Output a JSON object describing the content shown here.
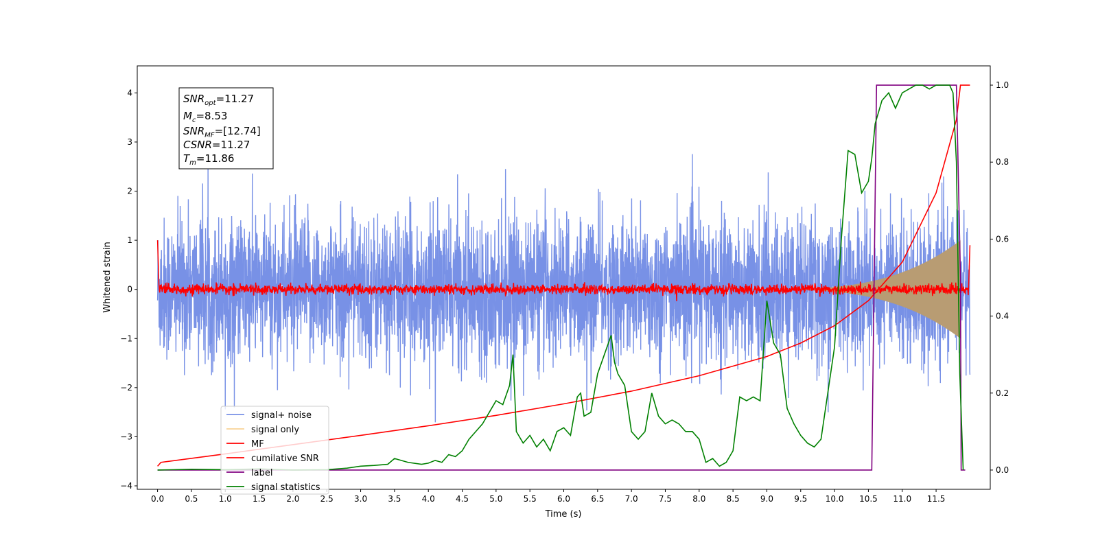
{
  "chart_data": {
    "type": "line",
    "xlabel": "Time (s)",
    "ylabel": "Whitened strain",
    "x_ticks": [
      "0.0",
      "0.5",
      "1.0",
      "1.5",
      "2.0",
      "2.5",
      "3.0",
      "3.5",
      "4.0",
      "4.5",
      "5.0",
      "5.5",
      "6.0",
      "6.5",
      "7.0",
      "7.5",
      "8.0",
      "8.5",
      "9.0",
      "9.5",
      "10.0",
      "10.5",
      "11.0",
      "11.5"
    ],
    "y_left_ticks": [
      "4",
      "3",
      "2",
      "1",
      "0",
      "−1",
      "−2",
      "−3",
      "−4"
    ],
    "y_right_ticks": [
      "1.0",
      "0.8",
      "0.6",
      "0.4",
      "0.2",
      "0.0"
    ],
    "xlim": [
      -0.3,
      12.3
    ],
    "ylim_left": [
      -4.07,
      4.55
    ],
    "ylim_right": [
      -0.05,
      1.05
    ],
    "legend_position": "lower-left",
    "grid": false,
    "annotation": {
      "snr_opt": {
        "base": "SNR",
        "sub": "opt",
        "value": "=11.27"
      },
      "mc": {
        "base": "M",
        "sub": "c",
        "value": "=8.53"
      },
      "snr_mf": {
        "base": "SNR",
        "sub": "MF",
        "value": "=[12.74]"
      },
      "csnr": {
        "base": "CSNR",
        "sub": "",
        "value": "=11.27"
      },
      "tm": {
        "base": "T",
        "sub": "m",
        "value": "=11.86"
      }
    },
    "series": [
      {
        "name": "signal+ noise",
        "color": "#7891e6",
        "axis": "left",
        "desc": "noise",
        "noise_sigma": 1.0,
        "max": 4.2,
        "min": -3.7
      },
      {
        "name": "signal only",
        "color": "#f5c06a",
        "axis": "left",
        "desc": "chirp",
        "amp_end": 1.0,
        "t_end": 11.86
      },
      {
        "name": "MF",
        "color": "#ff0000",
        "axis": "left",
        "desc": "mf",
        "start_value": 1.0,
        "end_value": 0.9,
        "noise_sigma": 0.05
      },
      {
        "name": "cumilative SNR",
        "color": "#ff0000",
        "axis": "right",
        "x": [
          0.0,
          0.05,
          1.0,
          2.0,
          3.0,
          4.0,
          5.0,
          6.0,
          7.0,
          8.0,
          9.0,
          9.5,
          10.0,
          10.5,
          11.0,
          11.5,
          11.8,
          11.86,
          12.0
        ],
        "values": [
          0.01,
          0.02,
          0.042,
          0.066,
          0.09,
          0.115,
          0.142,
          0.172,
          0.205,
          0.245,
          0.295,
          0.33,
          0.375,
          0.44,
          0.54,
          0.72,
          0.91,
          1.0,
          1.0
        ]
      },
      {
        "name": "label",
        "color": "#800080",
        "axis": "right",
        "x": [
          0.0,
          10.55,
          10.62,
          11.8,
          11.86,
          11.87,
          11.93
        ],
        "values": [
          0.0,
          0.0,
          1.0,
          1.0,
          0.5,
          0.0,
          0.0
        ]
      },
      {
        "name": "signal statistics",
        "color": "#008000",
        "axis": "right",
        "x": [
          0.0,
          0.5,
          1.0,
          1.5,
          2.0,
          2.5,
          2.8,
          3.0,
          3.2,
          3.4,
          3.5,
          3.7,
          3.9,
          4.0,
          4.1,
          4.2,
          4.3,
          4.4,
          4.5,
          4.6,
          4.7,
          4.8,
          4.9,
          5.0,
          5.1,
          5.2,
          5.25,
          5.3,
          5.4,
          5.5,
          5.6,
          5.7,
          5.8,
          5.9,
          6.0,
          6.1,
          6.2,
          6.25,
          6.3,
          6.4,
          6.5,
          6.6,
          6.7,
          6.75,
          6.8,
          6.9,
          7.0,
          7.1,
          7.2,
          7.3,
          7.4,
          7.5,
          7.6,
          7.7,
          7.8,
          7.9,
          8.0,
          8.1,
          8.2,
          8.3,
          8.4,
          8.5,
          8.6,
          8.7,
          8.8,
          8.9,
          9.0,
          9.1,
          9.2,
          9.3,
          9.4,
          9.5,
          9.6,
          9.7,
          9.8,
          9.9,
          10.0,
          10.1,
          10.2,
          10.3,
          10.4,
          10.5,
          10.55,
          10.6,
          10.7,
          10.8,
          10.9,
          11.0,
          11.1,
          11.2,
          11.3,
          11.4,
          11.5,
          11.6,
          11.7,
          11.75,
          11.8,
          11.85,
          11.9
        ],
        "values": [
          0.0,
          0.002,
          0.001,
          0.003,
          0.0,
          0.001,
          0.005,
          0.01,
          0.012,
          0.015,
          0.03,
          0.02,
          0.015,
          0.018,
          0.025,
          0.02,
          0.04,
          0.035,
          0.05,
          0.08,
          0.1,
          0.12,
          0.15,
          0.18,
          0.17,
          0.22,
          0.3,
          0.1,
          0.07,
          0.09,
          0.06,
          0.08,
          0.05,
          0.1,
          0.11,
          0.09,
          0.19,
          0.2,
          0.14,
          0.15,
          0.25,
          0.3,
          0.35,
          0.28,
          0.25,
          0.22,
          0.1,
          0.08,
          0.1,
          0.2,
          0.14,
          0.12,
          0.13,
          0.12,
          0.1,
          0.1,
          0.08,
          0.02,
          0.03,
          0.01,
          0.02,
          0.05,
          0.19,
          0.18,
          0.19,
          0.18,
          0.44,
          0.33,
          0.3,
          0.16,
          0.12,
          0.09,
          0.07,
          0.06,
          0.08,
          0.2,
          0.32,
          0.6,
          0.83,
          0.82,
          0.72,
          0.75,
          0.81,
          0.9,
          0.96,
          0.98,
          0.94,
          0.98,
          0.99,
          1.0,
          1.0,
          0.99,
          1.0,
          1.0,
          1.0,
          0.98,
          0.8,
          0.25,
          0.0
        ]
      }
    ]
  }
}
